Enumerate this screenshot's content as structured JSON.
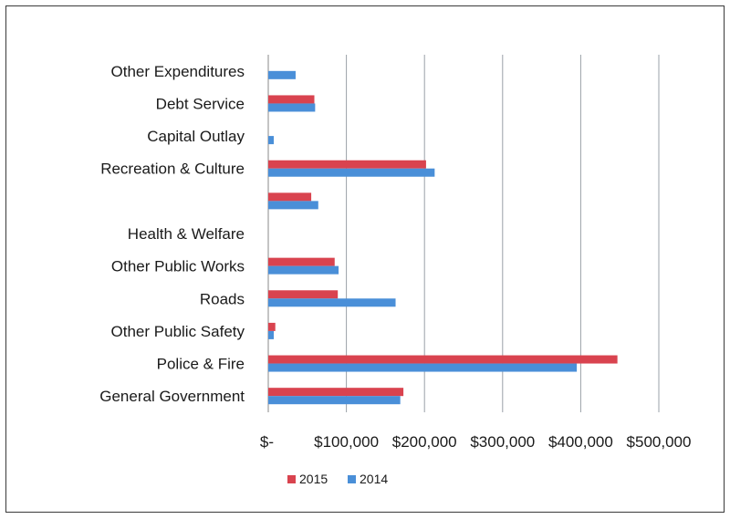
{
  "chart_data": {
    "type": "bar",
    "orientation": "horizontal",
    "categories": [
      "General Government",
      "Police & Fire",
      "Other Public Safety",
      "Roads",
      "Other Public Works",
      "Health & Welfare",
      "",
      "Recreation & Culture",
      "Capital Outlay",
      "Debt Service",
      "Other Expenditures"
    ],
    "series": [
      {
        "name": "2015",
        "color": "#d9434f",
        "values": [
          173000,
          447000,
          9000,
          89000,
          85000,
          0,
          55000,
          202000,
          0,
          59000,
          0
        ]
      },
      {
        "name": "2014",
        "color": "#4a8fd8",
        "values": [
          169000,
          395000,
          7000,
          163000,
          90000,
          0,
          64000,
          213000,
          7000,
          60000,
          35000
        ]
      }
    ],
    "x_ticks": [
      "$-",
      "$100,000",
      "$200,000",
      "$300,000",
      "$400,000",
      "$500,000"
    ],
    "xlim": [
      0,
      500000
    ],
    "grid": "vertical",
    "legend_position": "bottom"
  }
}
